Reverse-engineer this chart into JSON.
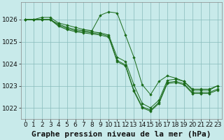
{
  "title": "Graphe pression niveau de la mer (hPa)",
  "background_color": "#c8eaea",
  "grid_color": "#88bbbb",
  "line_color": "#1a6b1a",
  "marker_color": "#1a6b1a",
  "xlim": [
    -0.5,
    23.5
  ],
  "ylim": [
    1021.5,
    1026.8
  ],
  "yticks": [
    1022,
    1023,
    1024,
    1025,
    1026
  ],
  "xticks": [
    0,
    1,
    2,
    3,
    4,
    5,
    6,
    7,
    8,
    9,
    10,
    11,
    12,
    13,
    14,
    15,
    16,
    17,
    18,
    19,
    20,
    21,
    22,
    23
  ],
  "series": [
    [
      1026.0,
      1026.0,
      1026.1,
      1026.1,
      1025.85,
      1025.75,
      1025.65,
      1025.55,
      1025.5,
      1026.2,
      1026.35,
      1026.3,
      1025.3,
      1024.3,
      1023.05,
      1022.6,
      1023.2,
      1023.45,
      1023.35,
      1023.2,
      1022.85,
      1022.85,
      1022.85,
      1023.0
    ],
    [
      1026.0,
      1026.0,
      1026.0,
      1026.0,
      1025.8,
      1025.65,
      1025.55,
      1025.5,
      1025.45,
      1025.4,
      1025.3,
      1024.3,
      1024.1,
      1023.05,
      1022.2,
      1022.0,
      1022.35,
      1023.25,
      1023.3,
      1023.2,
      1022.8,
      1022.8,
      1022.8,
      1023.0
    ],
    [
      1026.0,
      1026.0,
      1026.0,
      1026.0,
      1025.75,
      1025.6,
      1025.5,
      1025.45,
      1025.4,
      1025.35,
      1025.25,
      1024.15,
      1023.95,
      1022.8,
      1022.05,
      1021.9,
      1022.25,
      1023.15,
      1023.2,
      1023.1,
      1022.7,
      1022.7,
      1022.7,
      1022.85
    ],
    [
      1026.0,
      1026.0,
      1026.0,
      1026.0,
      1025.7,
      1025.55,
      1025.45,
      1025.4,
      1025.35,
      1025.3,
      1025.2,
      1024.1,
      1023.9,
      1022.75,
      1022.0,
      1021.85,
      1022.2,
      1023.1,
      1023.15,
      1023.05,
      1022.65,
      1022.65,
      1022.65,
      1022.8
    ]
  ],
  "title_fontsize": 8,
  "tick_fontsize": 6.5
}
